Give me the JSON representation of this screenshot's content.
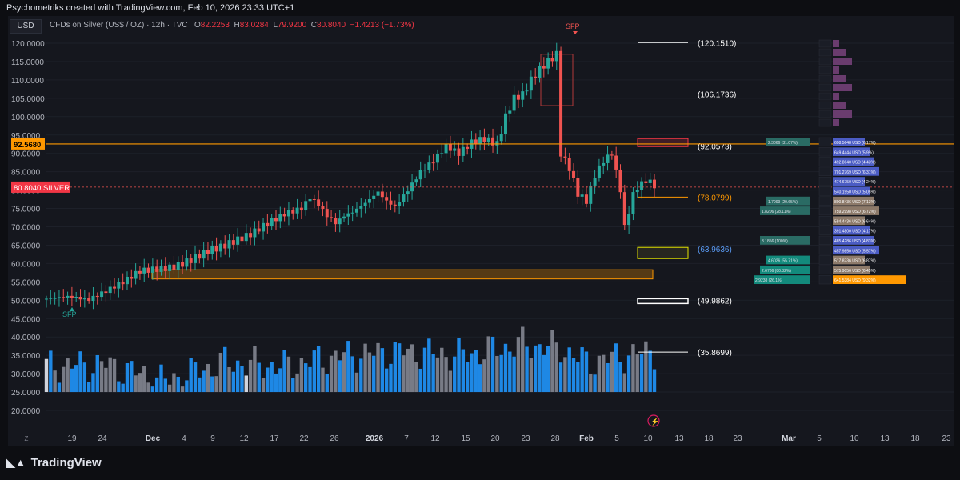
{
  "header": {
    "attribution": "Psychometriks created with TradingView.com, Feb 10, 2026 23:33 UTC+1"
  },
  "legend": {
    "currency": "USD",
    "symbol": "CFDs on Silver (US$ / OZ) · 12h · TVC",
    "o_label": "O",
    "o": "82.2253",
    "h_label": "H",
    "h": "83.0284",
    "l_label": "L",
    "l": "79.9200",
    "c_label": "C",
    "c": "80.8040",
    "change": "−1.4213 (−1.73%)"
  },
  "footer": {
    "logo_text": "TradingView",
    "logo_icon": "tradingview-logo-icon"
  },
  "colors": {
    "up": "#26a69a",
    "down": "#ef5350",
    "vol_blue": "#1e88e5",
    "vol_grey": "#787b86",
    "vol_white": "#d1d4dc",
    "orange": "#ff9800",
    "bg": "#15171e"
  },
  "chart_data": {
    "type": "candlestick",
    "y_axis": {
      "ticks": [
        "120.0000",
        "115.0000",
        "110.0000",
        "105.0000",
        "100.0000",
        "95.0000",
        "90.0000",
        "85.0000",
        "80.0000",
        "75.0000",
        "70.0000",
        "65.0000",
        "60.0000",
        "55.0000",
        "50.0000",
        "45.0000",
        "40.0000",
        "35.0000",
        "30.0000",
        "25.0000",
        "20.0000"
      ],
      "range": [
        18.5,
        121.5
      ]
    },
    "x_axis": {
      "ticks": [
        "19",
        "24",
        "Dec",
        "4",
        "9",
        "12",
        "17",
        "22",
        "26",
        "2026",
        "7",
        "12",
        "15",
        "20",
        "23",
        "28",
        "Feb",
        "5",
        "10",
        "13",
        "18",
        "23",
        "Mar",
        "5",
        "10",
        "13",
        "18",
        "23"
      ]
    },
    "price_label": {
      "value": "80.8040",
      "name": "SILVER"
    },
    "level_label": "92.5680",
    "levels": [
      {
        "value": 120.151,
        "label": "(120.1510)"
      },
      {
        "value": 106.1736,
        "label": "(106.1736)"
      },
      {
        "value": 92.0573,
        "label": "(92.0573)"
      },
      {
        "value": 78.0799,
        "label": "(78.0799)"
      },
      {
        "value": 63.9636,
        "label": "(63.9636)"
      },
      {
        "value": 49.9862,
        "label": "(49.9862)"
      },
      {
        "value": 35.8699,
        "label": "(35.8699)"
      }
    ],
    "annotations": [
      {
        "text": "SFP",
        "at": "low"
      },
      {
        "text": "SFP",
        "at": "high"
      }
    ],
    "close_path": [
      [
        0,
        50.4
      ],
      [
        5,
        51.0
      ],
      [
        10,
        50.2
      ],
      [
        14,
        52.5
      ],
      [
        18,
        55
      ],
      [
        22,
        58
      ],
      [
        26,
        58.5
      ],
      [
        30,
        59
      ],
      [
        34,
        61
      ],
      [
        38,
        63.5
      ],
      [
        41,
        64.5
      ],
      [
        44,
        66
      ],
      [
        48,
        68
      ],
      [
        52,
        71
      ],
      [
        56,
        73.5
      ],
      [
        60,
        75
      ],
      [
        62,
        78
      ],
      [
        64,
        76
      ],
      [
        66,
        73
      ],
      [
        68,
        71
      ],
      [
        70,
        73
      ],
      [
        72,
        74
      ],
      [
        75,
        76.5
      ],
      [
        78,
        79.5
      ],
      [
        80,
        77
      ],
      [
        82,
        75.5
      ],
      [
        85,
        80
      ],
      [
        88,
        85
      ],
      [
        91,
        88
      ],
      [
        94,
        92
      ],
      [
        97,
        90
      ],
      [
        100,
        93
      ],
      [
        103,
        94
      ],
      [
        106,
        92.5
      ],
      [
        108,
        100
      ],
      [
        110,
        105
      ],
      [
        112,
        106
      ],
      [
        114,
        110
      ],
      [
        116,
        113
      ],
      [
        118,
        115
      ],
      [
        120,
        117
      ],
      [
        121,
        90
      ],
      [
        123,
        86
      ],
      [
        125,
        79
      ],
      [
        127,
        77
      ],
      [
        129,
        84
      ],
      [
        131,
        88
      ],
      [
        133,
        90
      ],
      [
        135,
        80
      ],
      [
        136,
        70
      ],
      [
        137,
        74
      ],
      [
        138,
        79
      ],
      [
        140,
        82
      ],
      [
        142,
        82.5
      ],
      [
        143,
        80.8
      ]
    ],
    "volume_path": [
      [
        0,
        32
      ],
      [
        14,
        32.5
      ],
      [
        28,
        28
      ],
      [
        42,
        33
      ],
      [
        56,
        32
      ],
      [
        70,
        35
      ],
      [
        84,
        36
      ],
      [
        98,
        35
      ],
      [
        112,
        38
      ],
      [
        121,
        37
      ],
      [
        127,
        33
      ],
      [
        136,
        35
      ],
      [
        143,
        36
      ]
    ],
    "profile": [
      {
        "left": "2.3066 (31.07%)",
        "right": "698.5648 USD (6.17%)"
      },
      {
        "left": "",
        "right": "649.4444 USD (5.9%)"
      },
      {
        "left": "",
        "right": "492.8640 USD (4.43%)"
      },
      {
        "left": "",
        "right": "701.2769 USD (6.31%)"
      },
      {
        "left": "",
        "right": "474.6750 USD (4.24%)"
      },
      {
        "left": "",
        "right": "540.1950 USD (5.05%)"
      },
      {
        "left": "1.7999 (20.65%)",
        "right": "800.8436 USD (7.13%)"
      },
      {
        "left": "1.8206 (28.11%)",
        "right": "759.2998 USD (6.72%)"
      },
      {
        "left": "",
        "right": "584.4436 USD (6.64%)"
      },
      {
        "left": "",
        "right": "391.4800 USD (4.17%)"
      },
      {
        "left": "3.1856 (100%)",
        "right": "485.4286 USD (4.83%)"
      },
      {
        "left": "",
        "right": "457.9850 USD (5.57%)"
      },
      {
        "left": "4.6026 (55.71%)",
        "right": "517.8736 USD (6.87%)"
      },
      {
        "left": "2.6786 (80.32%)",
        "right": "575.9056 USD (6.45%)"
      },
      {
        "left": "2.9238 (26.1%)",
        "right": "641.5384 USD (9.32%)"
      }
    ]
  }
}
